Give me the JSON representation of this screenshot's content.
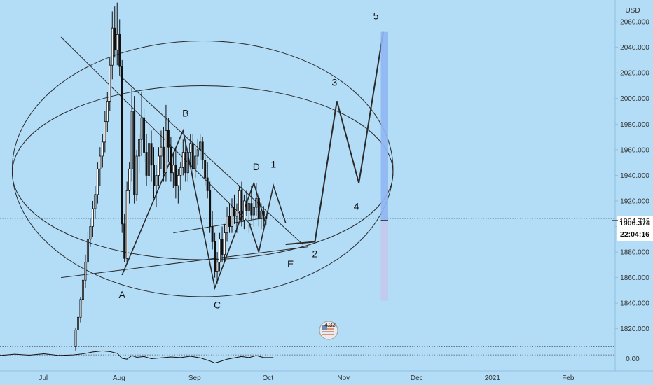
{
  "chart_data": {
    "type": "candlestick",
    "currency": "USD",
    "price_axis": {
      "ticks": [
        1820,
        1840,
        1860,
        1880,
        1900,
        1920,
        1940,
        1960,
        1980,
        2000,
        2020,
        2040,
        2060
      ],
      "tick_labels": [
        "1820.000",
        "1840.000",
        "1860.000",
        "1880.000",
        "1900.000",
        "1920.000",
        "1940.000",
        "1960.000",
        "1980.000",
        "2000.000",
        "2020.000",
        "2040.000",
        "2060.000"
      ],
      "range": [
        1810,
        2077
      ]
    },
    "time_axis": {
      "labels": [
        "Jul",
        "Aug",
        "Sep",
        "Oct",
        "Nov",
        "Dec",
        "2021",
        "Feb"
      ],
      "range_days": [
        -16,
        236
      ]
    },
    "price_label": {
      "value": "1906.374",
      "countdown": "22:04:16"
    },
    "secondary_label": {
      "value": "1904.715",
      "price": 1904.715
    },
    "indicator": {
      "tick_label": "0.00",
      "zero_line": 0,
      "upper_line": 0.6,
      "range": [
        -1.2,
        1.0
      ]
    },
    "badge": {
      "text": "4.33"
    },
    "candles": [
      [
        15,
        1806,
        1821,
        1803,
        1819
      ],
      [
        16,
        1819,
        1831,
        1815,
        1829
      ],
      [
        17,
        1829,
        1845,
        1825,
        1843
      ],
      [
        18,
        1843,
        1862,
        1839,
        1858
      ],
      [
        19,
        1858,
        1878,
        1852,
        1872
      ],
      [
        20,
        1872,
        1896,
        1866,
        1890
      ],
      [
        21,
        1890,
        1906,
        1884,
        1900
      ],
      [
        22,
        1900,
        1920,
        1892,
        1914
      ],
      [
        23,
        1914,
        1932,
        1906,
        1925
      ],
      [
        24,
        1925,
        1950,
        1918,
        1945
      ],
      [
        25,
        1945,
        1962,
        1932,
        1955
      ],
      [
        26,
        1955,
        1972,
        1946,
        1966
      ],
      [
        27,
        1966,
        1990,
        1958,
        1982
      ],
      [
        28,
        1982,
        2005,
        1974,
        1998
      ],
      [
        29,
        1998,
        2032,
        1990,
        2026
      ],
      [
        30,
        2026,
        2068,
        2015,
        2055
      ],
      [
        31,
        2055,
        2072,
        2032,
        2038
      ],
      [
        32,
        2038,
        2075,
        2026,
        2050
      ],
      [
        33,
        2050,
        2062,
        2018,
        2025
      ],
      [
        34,
        2025,
        2030,
        1895,
        1902
      ],
      [
        35,
        1902,
        1910,
        1872,
        1875
      ],
      [
        36,
        1875,
        1935,
        1872,
        1928
      ],
      [
        37,
        1928,
        1950,
        1918,
        1945
      ],
      [
        38,
        1945,
        2008,
        1935,
        1990
      ],
      [
        39,
        1990,
        2002,
        1918,
        1925
      ],
      [
        40,
        1925,
        1960,
        1920,
        1955
      ],
      [
        41,
        1955,
        1972,
        1942,
        1968
      ],
      [
        42,
        1968,
        2005,
        1955,
        1985
      ],
      [
        43,
        1985,
        1992,
        1950,
        1958
      ],
      [
        44,
        1958,
        1972,
        1932,
        1940
      ],
      [
        45,
        1940,
        1978,
        1930,
        1965
      ],
      [
        46,
        1965,
        1975,
        1935,
        1948
      ],
      [
        47,
        1948,
        1962,
        1922,
        1932
      ],
      [
        48,
        1932,
        1948,
        1915,
        1940
      ],
      [
        49,
        1940,
        1962,
        1932,
        1955
      ],
      [
        50,
        1955,
        1975,
        1945,
        1962
      ],
      [
        51,
        1962,
        1978,
        1935,
        1942
      ],
      [
        52,
        1942,
        1995,
        1935,
        1975
      ],
      [
        53,
        1975,
        1985,
        1950,
        1962
      ],
      [
        54,
        1962,
        1970,
        1935,
        1942
      ],
      [
        55,
        1942,
        1958,
        1930,
        1948
      ],
      [
        56,
        1948,
        1962,
        1922,
        1932
      ],
      [
        57,
        1932,
        1945,
        1918,
        1940
      ],
      [
        58,
        1940,
        1950,
        1928,
        1946
      ],
      [
        59,
        1946,
        1968,
        1940,
        1958
      ],
      [
        60,
        1958,
        1965,
        1935,
        1942
      ],
      [
        61,
        1942,
        1962,
        1935,
        1958
      ],
      [
        62,
        1958,
        1972,
        1948,
        1965
      ],
      [
        63,
        1965,
        1972,
        1935,
        1945
      ],
      [
        64,
        1945,
        1962,
        1938,
        1955
      ],
      [
        65,
        1955,
        1968,
        1948,
        1960
      ],
      [
        66,
        1960,
        1972,
        1952,
        1966
      ],
      [
        67,
        1966,
        1970,
        1945,
        1952
      ],
      [
        68,
        1952,
        1958,
        1932,
        1938
      ],
      [
        69,
        1938,
        1950,
        1922,
        1928
      ],
      [
        70,
        1928,
        1935,
        1895,
        1900
      ],
      [
        71,
        1900,
        1912,
        1882,
        1888
      ],
      [
        72,
        1888,
        1895,
        1860,
        1865
      ],
      [
        73,
        1865,
        1880,
        1855,
        1872
      ],
      [
        74,
        1872,
        1895,
        1865,
        1890
      ],
      [
        75,
        1890,
        1900,
        1872,
        1878
      ],
      [
        76,
        1878,
        1902,
        1872,
        1895
      ],
      [
        77,
        1895,
        1915,
        1888,
        1908
      ],
      [
        78,
        1908,
        1918,
        1895,
        1900
      ],
      [
        79,
        1900,
        1922,
        1895,
        1915
      ],
      [
        80,
        1915,
        1925,
        1902,
        1908
      ],
      [
        81,
        1908,
        1918,
        1895,
        1912
      ],
      [
        82,
        1912,
        1932,
        1905,
        1928
      ],
      [
        83,
        1928,
        1935,
        1900,
        1905
      ],
      [
        84,
        1905,
        1925,
        1898,
        1920
      ],
      [
        85,
        1920,
        1928,
        1908,
        1912
      ],
      [
        86,
        1912,
        1922,
        1895,
        1918
      ],
      [
        87,
        1918,
        1932,
        1905,
        1909
      ],
      [
        88,
        1909,
        1920,
        1900,
        1915
      ],
      [
        89,
        1915,
        1934,
        1908,
        1922
      ],
      [
        90,
        1922,
        1926,
        1900,
        1906
      ],
      [
        91,
        1906,
        1918,
        1898,
        1912
      ],
      [
        92,
        1912,
        1916,
        1900,
        1908
      ],
      [
        93,
        1908,
        1912,
        1902,
        1906
      ]
    ],
    "rsi": [
      [
        -16,
        -0.05
      ],
      [
        -10,
        0.05
      ],
      [
        -4,
        -0.02
      ],
      [
        2,
        0.08
      ],
      [
        8,
        -0.04
      ],
      [
        14,
        0.0
      ],
      [
        18,
        0.08
      ],
      [
        22,
        0.22
      ],
      [
        26,
        0.3
      ],
      [
        29,
        0.25
      ],
      [
        32,
        0.12
      ],
      [
        34,
        -0.25
      ],
      [
        36,
        -0.32
      ],
      [
        38,
        -0.05
      ],
      [
        40,
        -0.18
      ],
      [
        43,
        -0.12
      ],
      [
        46,
        -0.28
      ],
      [
        50,
        -0.22
      ],
      [
        54,
        -0.15
      ],
      [
        58,
        -0.2
      ],
      [
        62,
        -0.1
      ],
      [
        66,
        -0.22
      ],
      [
        70,
        -0.45
      ],
      [
        72,
        -0.6
      ],
      [
        74,
        -0.5
      ],
      [
        77,
        -0.32
      ],
      [
        80,
        -0.22
      ],
      [
        83,
        -0.12
      ],
      [
        86,
        -0.2
      ],
      [
        89,
        -0.05
      ],
      [
        92,
        -0.2
      ],
      [
        96,
        -0.2
      ]
    ],
    "drawings": {
      "zigzag": [
        [
          34,
          1862
        ],
        [
          59,
          1975
        ],
        [
          72,
          1852
        ],
        [
          88,
          1934
        ],
        [
          93,
          1901
        ]
      ],
      "triangle_lines": [
        [
          [
            9,
            2048
          ],
          [
            87,
            1901
          ]
        ],
        [
          [
            9,
            1860
          ],
          [
            110,
            1884
          ]
        ]
      ],
      "wedge_lines": [
        [
          [
            33,
            2018
          ],
          [
            108,
            1886
          ]
        ],
        [
          [
            55,
            1895
          ],
          [
            93,
            1907
          ]
        ]
      ],
      "zigzag_e": [
        [
          86,
          1903
        ],
        [
          90,
          1880
        ],
        [
          96,
          1932
        ],
        [
          101,
          1903
        ]
      ],
      "projection": [
        [
          101,
          1886
        ],
        [
          113,
          1888
        ],
        [
          122,
          1998
        ],
        [
          131,
          1934
        ],
        [
          141,
          2052
        ]
      ],
      "ellipses": [
        {
          "cx_day": 67,
          "cy_price": 1945,
          "rx_days": 78,
          "ry_price": 100
        },
        {
          "cx_day": 67,
          "cy_price": 1942,
          "rx_days": 78,
          "ry_price": 68
        }
      ],
      "target_zone": {
        "day_from": 140,
        "day_to": 143,
        "price_top": 2052,
        "price_mid": 1904.7,
        "price_bottom": 1842
      }
    },
    "labels": [
      {
        "text": "A",
        "day": 34,
        "price": 1844
      },
      {
        "text": "B",
        "day": 60,
        "price": 1986
      },
      {
        "text": "C",
        "day": 73,
        "price": 1836
      },
      {
        "text": "D",
        "day": 89,
        "price": 1944
      },
      {
        "text": "1",
        "day": 96,
        "price": 1946
      },
      {
        "text": "E",
        "day": 103,
        "price": 1868
      },
      {
        "text": "2",
        "day": 113,
        "price": 1876
      },
      {
        "text": "3",
        "day": 121,
        "price": 2010
      },
      {
        "text": "4",
        "day": 130,
        "price": 1913
      },
      {
        "text": "5",
        "day": 138,
        "price": 2062
      }
    ]
  }
}
